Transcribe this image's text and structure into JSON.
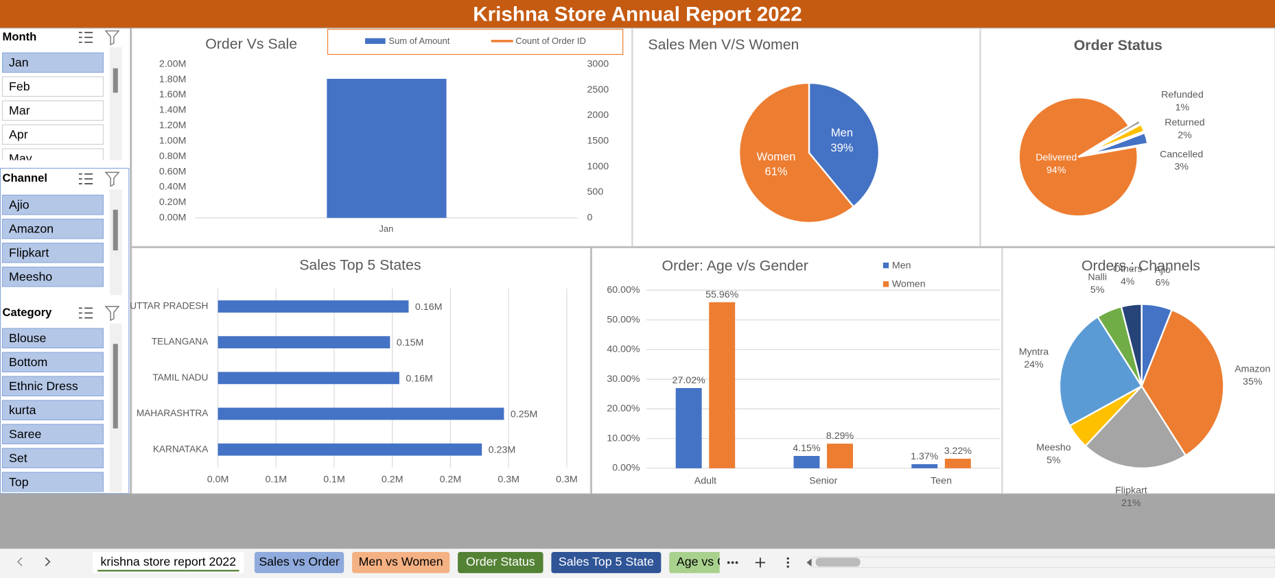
{
  "header": {
    "title": "Krishna Store Annual Report 2022"
  },
  "slicers": [
    {
      "title": "Month",
      "items": [
        "Jan",
        "Feb",
        "Mar",
        "Apr",
        "May"
      ],
      "selected": [
        0
      ]
    },
    {
      "title": "Channel",
      "items": [
        "Ajio",
        "Amazon",
        "Flipkart",
        "Meesho"
      ],
      "selected": [
        0,
        1,
        2,
        3
      ]
    },
    {
      "title": "Category",
      "items": [
        "Blouse",
        "Bottom",
        "Ethnic Dress",
        "kurta",
        "Saree",
        "Set",
        "Top"
      ],
      "selected": [
        0,
        1,
        2,
        3,
        4,
        5,
        6
      ]
    }
  ],
  "chart_data": [
    {
      "type": "combo",
      "title": "Order Vs  Sale",
      "categories": [
        "Jan"
      ],
      "series": [
        {
          "name": "Sum of Amount",
          "type": "bar",
          "color": "#4472c4",
          "values": [
            1810000
          ]
        },
        {
          "name": "Count of Order ID",
          "type": "line",
          "axis": "y2",
          "color": "#ed7d31",
          "values": [
            null
          ]
        }
      ],
      "ylim": [
        0,
        2000000
      ],
      "yticks": [
        {
          "value": 0,
          "label": "0.00M"
        },
        {
          "value": 200000,
          "label": "0.20M"
        },
        {
          "value": 400000,
          "label": "0.40M"
        },
        {
          "value": 600000,
          "label": "0.60M"
        },
        {
          "value": 800000,
          "label": "0.80M"
        },
        {
          "value": 1000000,
          "label": "1.00M"
        },
        {
          "value": 1200000,
          "label": "1.20M"
        },
        {
          "value": 1400000,
          "label": "1.40M"
        },
        {
          "value": 1600000,
          "label": "1.60M"
        },
        {
          "value": 1800000,
          "label": "1.80M"
        },
        {
          "value": 2000000,
          "label": "2.00M"
        }
      ],
      "y2lim": [
        0,
        3000
      ],
      "y2ticks": [
        0,
        500,
        1000,
        1500,
        2000,
        2500,
        3000
      ],
      "legend": "top"
    },
    {
      "type": "pie",
      "title": "Sales Men V/S Women",
      "categories": [
        "Men",
        "Women"
      ],
      "values": [
        39,
        61
      ],
      "value_labels": [
        "39%",
        "61%"
      ],
      "colors": [
        "#4472c4",
        "#ed7d31"
      ]
    },
    {
      "type": "pie",
      "title": "Order Status",
      "categories": [
        "Refunded",
        "Returned",
        "Cancelled",
        "Delivered"
      ],
      "values": [
        1,
        2,
        3,
        94
      ],
      "value_labels": [
        "1%",
        "2%",
        "3%",
        "94%"
      ],
      "colors": [
        "#a5a5a5",
        "#ffc000",
        "#4472c4",
        "#ed7d31"
      ]
    },
    {
      "type": "hbar",
      "title": "Sales Top 5 States",
      "categories": [
        "UTTAR PRADESH",
        "TELANGANA",
        "TAMIL NADU",
        "MAHARASHTRA",
        "KARNATAKA"
      ],
      "values": [
        164000,
        148000,
        156000,
        246000,
        227000
      ],
      "value_labels": [
        "0.16M",
        "0.15M",
        "0.16M",
        "0.25M",
        "0.23M"
      ],
      "color": "#4472c4",
      "xlim": [
        0,
        300000
      ],
      "xticks": [
        {
          "value": 0,
          "label": "0.0M"
        },
        {
          "value": 50000,
          "label": "0.1M"
        },
        {
          "value": 100000,
          "label": "0.1M"
        },
        {
          "value": 150000,
          "label": "0.2M"
        },
        {
          "value": 200000,
          "label": "0.2M"
        },
        {
          "value": 250000,
          "label": "0.3M"
        },
        {
          "value": 300000,
          "label": "0.3M"
        }
      ],
      "grid": true
    },
    {
      "type": "groupbar",
      "title": "Order: Age v/s Gender",
      "categories": [
        "Adult",
        "Senior",
        "Teen"
      ],
      "series": [
        {
          "name": "Men",
          "color": "#4472c4",
          "values": [
            27.02,
            4.15,
            1.37
          ],
          "value_labels": [
            "27.02%",
            "4.15%",
            "1.37%"
          ]
        },
        {
          "name": "Women",
          "color": "#ed7d31",
          "values": [
            55.96,
            8.29,
            3.22
          ],
          "value_labels": [
            "55.96%",
            "8.29%",
            "3.22%"
          ]
        }
      ],
      "ylim": [
        0,
        60
      ],
      "yticks": [
        {
          "value": 0,
          "label": "0.00%"
        },
        {
          "value": 10,
          "label": "10.00%"
        },
        {
          "value": 20,
          "label": "20.00%"
        },
        {
          "value": 30,
          "label": "30.00%"
        },
        {
          "value": 40,
          "label": "40.00%"
        },
        {
          "value": 50,
          "label": "50.00%"
        },
        {
          "value": 60,
          "label": "60.00%"
        }
      ],
      "grid": true,
      "legend": "top-right"
    },
    {
      "type": "pie",
      "title": "Orders : Channels",
      "categories": [
        "Ajio",
        "Amazon",
        "Flipkart",
        "Meesho",
        "Myntra",
        "Nalli",
        "Others"
      ],
      "values": [
        6,
        35,
        21,
        5,
        24,
        5,
        4
      ],
      "value_labels": [
        "6%",
        "35%",
        "21%",
        "5%",
        "24%",
        "5%",
        "4%"
      ],
      "colors": [
        "#4472c4",
        "#ed7d31",
        "#a5a5a5",
        "#ffc000",
        "#5b9bd5",
        "#70ad47",
        "#264478"
      ]
    }
  ],
  "tabs": [
    "krishna  store report 2022",
    "Sales vs Order",
    "Men vs Women",
    "Order Status",
    "Sales Top 5 State",
    "Age vs G"
  ]
}
